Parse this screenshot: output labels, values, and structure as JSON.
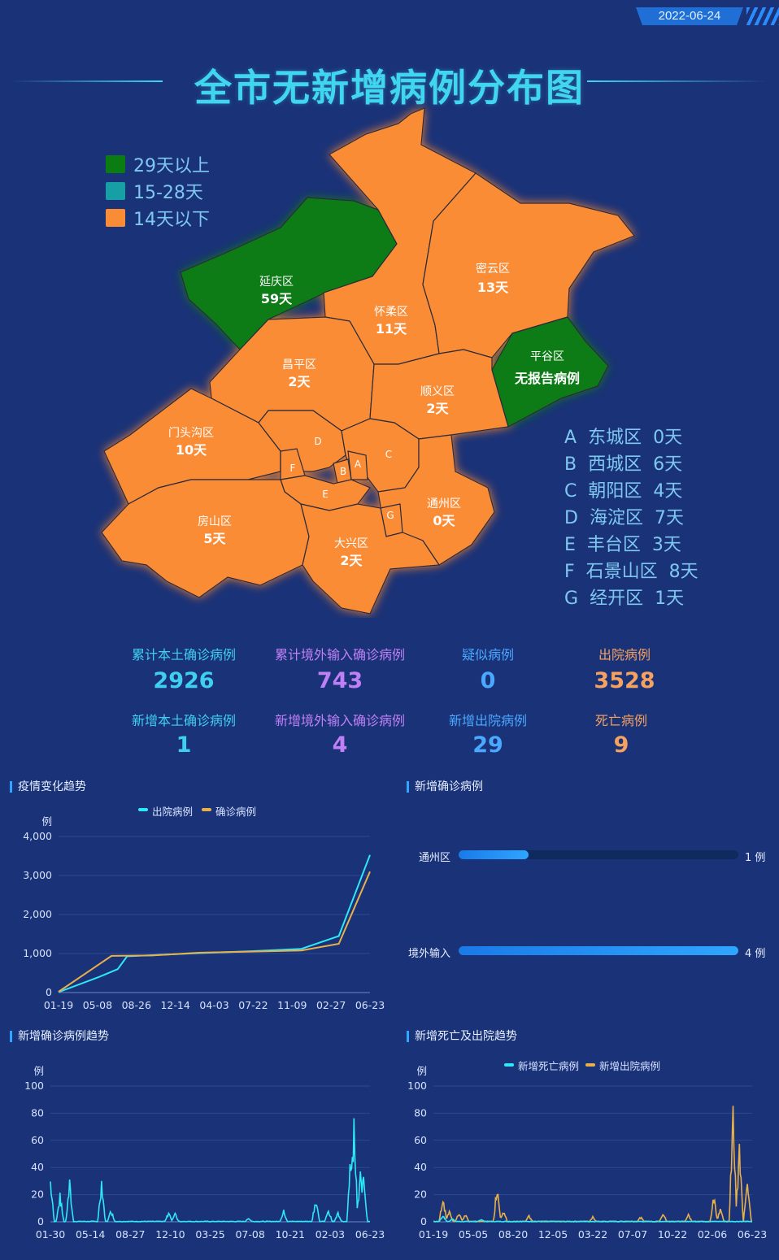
{
  "header": {
    "date": "2022-06-24",
    "title": "全市无新增病例分布图"
  },
  "legend": [
    {
      "label": "29天以上",
      "color": "#0b7c12"
    },
    {
      "label": "15-28天",
      "color": "#16a0a5"
    },
    {
      "label": "14天以下",
      "color": "#fa8c35"
    }
  ],
  "map": {
    "districts": [
      {
        "id": "yanqing",
        "name": "延庆区",
        "days": "59天",
        "category": "29天以上"
      },
      {
        "id": "miyun",
        "name": "密云区",
        "days": "13天",
        "category": "14天以下"
      },
      {
        "id": "huairou",
        "name": "怀柔区",
        "days": "11天",
        "category": "14天以下"
      },
      {
        "id": "pinggu",
        "name": "平谷区",
        "days": "无报告病例",
        "category": "29天以上"
      },
      {
        "id": "changping",
        "name": "昌平区",
        "days": "2天",
        "category": "14天以下"
      },
      {
        "id": "shunyi",
        "name": "顺义区",
        "days": "2天",
        "category": "14天以下"
      },
      {
        "id": "mentougou",
        "name": "门头沟区",
        "days": "10天",
        "category": "14天以下"
      },
      {
        "id": "tongzhou",
        "name": "通州区",
        "days": "0天",
        "category": "14天以下"
      },
      {
        "id": "fangshan",
        "name": "房山区",
        "days": "5天",
        "category": "14天以下"
      },
      {
        "id": "daxing",
        "name": "大兴区",
        "days": "2天",
        "category": "14天以下"
      }
    ],
    "letters": [
      "A",
      "B",
      "C",
      "D",
      "E",
      "F",
      "G"
    ]
  },
  "district_list": [
    {
      "letter": "A",
      "name": "东城区",
      "days": "0天"
    },
    {
      "letter": "B",
      "name": "西城区",
      "days": "6天"
    },
    {
      "letter": "C",
      "name": "朝阳区",
      "days": "4天"
    },
    {
      "letter": "D",
      "name": "海淀区",
      "days": "7天"
    },
    {
      "letter": "E",
      "name": "丰台区",
      "days": "3天"
    },
    {
      "letter": "F",
      "name": "石景山区",
      "days": "8天"
    },
    {
      "letter": "G",
      "name": "经开区",
      "days": "1天"
    }
  ],
  "stats": [
    {
      "label": "累计本土确诊病例",
      "value": "2926",
      "color": "#3fd0f0"
    },
    {
      "label": "累计境外输入确诊病例",
      "value": "743",
      "color": "#c080f5"
    },
    {
      "label": "疑似病例",
      "value": "0",
      "color": "#4aa8ff"
    },
    {
      "label": "出院病例",
      "value": "3528",
      "color": "#f5a160"
    },
    {
      "label": "新增本土确诊病例",
      "value": "1",
      "color": "#3fd0f0"
    },
    {
      "label": "新增境外输入确诊病例",
      "value": "4",
      "color": "#c080f5"
    },
    {
      "label": "新增出院病例",
      "value": "29",
      "color": "#4aa8ff"
    },
    {
      "label": "死亡病例",
      "value": "9",
      "color": "#f5a160"
    }
  ],
  "sections": {
    "trend": "疫情变化趋势",
    "new_confirmed": "新增确诊病例",
    "new_confirmed_trend": "新增确诊病例趋势",
    "death_discharge_trend": "新增死亡及出院趋势"
  },
  "chart_data": [
    {
      "type": "line",
      "title": "疫情变化趋势",
      "ylabel": "例",
      "ylim": [
        0,
        4000
      ],
      "yticks": [
        "0",
        "1,000",
        "2,000",
        "3,000",
        "4,000"
      ],
      "x": [
        "01-19",
        "05-08",
        "08-26",
        "12-14",
        "04-03",
        "07-22",
        "11-09",
        "02-27",
        "06-23"
      ],
      "legend_position": "top",
      "series": [
        {
          "name": "出院病例",
          "color": "#2ee8f5",
          "values": [
            10,
            400,
            600,
            930,
            1010,
            1060,
            1120,
            1450,
            3528
          ],
          "x_frac": [
            0.0,
            0.13,
            0.19,
            0.22,
            0.45,
            0.62,
            0.78,
            0.9,
            1.0
          ]
        },
        {
          "name": "确诊病例",
          "color": "#e8b04a",
          "values": [
            20,
            560,
            940,
            950,
            1020,
            1050,
            1080,
            1250,
            3100
          ],
          "x_frac": [
            0.0,
            0.1,
            0.17,
            0.3,
            0.45,
            0.62,
            0.78,
            0.9,
            1.0
          ]
        }
      ]
    },
    {
      "type": "bar",
      "title": "新增确诊病例",
      "categories": [
        "通州区",
        "境外输入"
      ],
      "values": [
        1,
        4
      ],
      "value_labels": [
        "1 例",
        "4 例"
      ],
      "xlim": [
        0,
        4
      ]
    },
    {
      "type": "line",
      "title": "新增确诊病例趋势",
      "ylabel": "例",
      "ylim": [
        0,
        100
      ],
      "yticks": [
        "0",
        "20",
        "40",
        "60",
        "80",
        "100"
      ],
      "x": [
        "01-30",
        "05-14",
        "08-27",
        "12-10",
        "03-25",
        "07-08",
        "10-21",
        "02-03",
        "06-23"
      ],
      "series": [
        {
          "name": "新增确诊病例",
          "color": "#2ee8f5",
          "peaks": [
            [
              0.0,
              36
            ],
            [
              0.03,
              22
            ],
            [
              0.06,
              32
            ],
            [
              0.16,
              36
            ],
            [
              0.19,
              10
            ],
            [
              0.37,
              8
            ],
            [
              0.39,
              7
            ],
            [
              0.62,
              3
            ],
            [
              0.73,
              9
            ],
            [
              0.83,
              20
            ],
            [
              0.87,
              10
            ],
            [
              0.9,
              8
            ],
            [
              0.94,
              62
            ],
            [
              0.95,
              83
            ],
            [
              0.97,
              40
            ],
            [
              0.98,
              42
            ]
          ]
        }
      ]
    },
    {
      "type": "line",
      "title": "新增死亡及出院趋势",
      "ylabel": "例",
      "ylim": [
        0,
        100
      ],
      "yticks": [
        "0",
        "20",
        "40",
        "60",
        "80",
        "100"
      ],
      "x": [
        "01-19",
        "05-05",
        "08-20",
        "12-05",
        "03-22",
        "07-07",
        "10-22",
        "02-06",
        "06-23"
      ],
      "legend_position": "top",
      "series": [
        {
          "name": "新增死亡病例",
          "color": "#2ee8f5",
          "peaks": [
            [
              0.03,
              6
            ],
            [
              0.06,
              3
            ],
            [
              0.15,
              2
            ]
          ]
        },
        {
          "name": "新增出院病例",
          "color": "#e8b04a",
          "peaks": [
            [
              0.03,
              22
            ],
            [
              0.05,
              10
            ],
            [
              0.08,
              8
            ],
            [
              0.1,
              6
            ],
            [
              0.2,
              32
            ],
            [
              0.22,
              10
            ],
            [
              0.3,
              5
            ],
            [
              0.5,
              4
            ],
            [
              0.65,
              4
            ],
            [
              0.72,
              8
            ],
            [
              0.8,
              6
            ],
            [
              0.88,
              22
            ],
            [
              0.9,
              12
            ],
            [
              0.94,
              93
            ],
            [
              0.96,
              62
            ],
            [
              0.985,
              40
            ]
          ]
        }
      ]
    }
  ]
}
